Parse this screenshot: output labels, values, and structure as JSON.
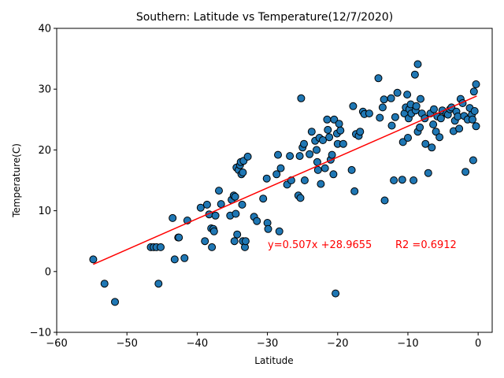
{
  "chart_data": {
    "type": "scatter",
    "title": "Southern: Latitude vs Temperature(12/7/2020)",
    "xlabel": "Latitude",
    "ylabel": "Temperature(C)",
    "xlim": [
      -60,
      2
    ],
    "ylim": [
      -10,
      40
    ],
    "x_ticks": [
      -60,
      -50,
      -40,
      -30,
      -20,
      -10,
      0
    ],
    "y_ticks": [
      -10,
      0,
      10,
      20,
      30,
      40
    ],
    "grid": false,
    "point_color": "#1f77b4",
    "line_color": "#ff0000",
    "regression": {
      "slope": 0.507,
      "intercept": 28.9655,
      "x_range": [
        -54.8,
        -0.2
      ],
      "equation_label": "y=0.507x +28.9655",
      "r2_label": "R2 =0.6912"
    },
    "points": [
      [
        -54.8,
        2.0
      ],
      [
        -53.2,
        -2.0
      ],
      [
        -51.7,
        -5.0
      ],
      [
        -46.6,
        4.0
      ],
      [
        -46.2,
        4.0
      ],
      [
        -45.8,
        4.0
      ],
      [
        -45.5,
        -2.0
      ],
      [
        -45.2,
        4.0
      ],
      [
        -43.5,
        8.8
      ],
      [
        -43.2,
        2.0
      ],
      [
        -42.7,
        5.6
      ],
      [
        -42.6,
        5.6
      ],
      [
        -41.8,
        2.2
      ],
      [
        -41.4,
        8.4
      ],
      [
        -39.5,
        10.5
      ],
      [
        -38.9,
        5.0
      ],
      [
        -38.6,
        11.0
      ],
      [
        -38.3,
        9.4
      ],
      [
        -38.0,
        7.1
      ],
      [
        -37.9,
        4.0
      ],
      [
        -37.7,
        7.0
      ],
      [
        -37.6,
        6.6
      ],
      [
        -37.4,
        9.2
      ],
      [
        -36.9,
        13.3
      ],
      [
        -36.6,
        11.1
      ],
      [
        -35.3,
        9.2
      ],
      [
        -35.1,
        11.8
      ],
      [
        -34.8,
        12.5
      ],
      [
        -34.6,
        12.3
      ],
      [
        -34.7,
        5.0
      ],
      [
        -34.5,
        9.5
      ],
      [
        -34.4,
        17.1
      ],
      [
        -34.3,
        6.1
      ],
      [
        -34.1,
        16.7
      ],
      [
        -33.9,
        17.5
      ],
      [
        -33.8,
        18.0
      ],
      [
        -33.7,
        16.0
      ],
      [
        -33.6,
        11.0
      ],
      [
        -33.5,
        16.3
      ],
      [
        -33.5,
        5.0
      ],
      [
        -33.4,
        18.2
      ],
      [
        -33.2,
        4.0
      ],
      [
        -33.1,
        5.0
      ],
      [
        -32.8,
        18.9
      ],
      [
        -31.9,
        9.0
      ],
      [
        -31.5,
        8.3
      ],
      [
        -30.6,
        12.0
      ],
      [
        -30.1,
        15.3
      ],
      [
        -30.0,
        8.0
      ],
      [
        -29.9,
        7.0
      ],
      [
        -28.7,
        16.0
      ],
      [
        -28.5,
        19.2
      ],
      [
        -28.3,
        6.6
      ],
      [
        -28.1,
        17.0
      ],
      [
        -27.2,
        14.3
      ],
      [
        -26.8,
        19.0
      ],
      [
        -26.6,
        15.0
      ],
      [
        -25.6,
        12.5
      ],
      [
        -25.4,
        19.0
      ],
      [
        -25.3,
        12.1
      ],
      [
        -25.2,
        28.5
      ],
      [
        -25.0,
        20.4
      ],
      [
        -24.8,
        21.0
      ],
      [
        -24.7,
        15.0
      ],
      [
        -24.0,
        19.3
      ],
      [
        -23.7,
        23.0
      ],
      [
        -23.2,
        21.5
      ],
      [
        -23.0,
        20.0
      ],
      [
        -22.9,
        18.0
      ],
      [
        -22.8,
        16.7
      ],
      [
        -22.6,
        22.0
      ],
      [
        -22.4,
        14.4
      ],
      [
        -22.1,
        21.6
      ],
      [
        -21.8,
        17.0
      ],
      [
        -21.5,
        25.0
      ],
      [
        -21.4,
        23.3
      ],
      [
        -21.2,
        22.1
      ],
      [
        -21.0,
        18.4
      ],
      [
        -20.8,
        19.2
      ],
      [
        -20.6,
        16.0
      ],
      [
        -20.5,
        25.0
      ],
      [
        -20.3,
        -3.6
      ],
      [
        -20.1,
        22.7
      ],
      [
        -20.0,
        21.0
      ],
      [
        -19.8,
        24.3
      ],
      [
        -19.6,
        23.2
      ],
      [
        -19.2,
        21.0
      ],
      [
        -18.0,
        16.7
      ],
      [
        -17.8,
        27.2
      ],
      [
        -17.6,
        13.2
      ],
      [
        -17.4,
        22.6
      ],
      [
        -17.0,
        22.3
      ],
      [
        -16.8,
        23.0
      ],
      [
        -16.4,
        26.3
      ],
      [
        -16.2,
        25.9
      ],
      [
        -15.5,
        26.0
      ],
      [
        -14.2,
        31.8
      ],
      [
        -14.0,
        25.3
      ],
      [
        -13.6,
        27.0
      ],
      [
        -13.4,
        28.3
      ],
      [
        -13.3,
        11.7
      ],
      [
        -12.4,
        28.5
      ],
      [
        -12.3,
        24.0
      ],
      [
        -12.0,
        15.0
      ],
      [
        -11.8,
        25.4
      ],
      [
        -11.5,
        29.4
      ],
      [
        -10.8,
        15.1
      ],
      [
        -10.7,
        21.3
      ],
      [
        -10.5,
        26.0
      ],
      [
        -10.3,
        27.0
      ],
      [
        -10.1,
        29.1
      ],
      [
        -10.0,
        22.0
      ],
      [
        -9.9,
        25.2
      ],
      [
        -9.8,
        26.7
      ],
      [
        -9.6,
        27.5
      ],
      [
        -9.5,
        26.0
      ],
      [
        -9.2,
        15.0
      ],
      [
        -9.0,
        32.4
      ],
      [
        -8.9,
        26.5
      ],
      [
        -8.8,
        27.2
      ],
      [
        -8.6,
        23.0
      ],
      [
        -8.6,
        34.1
      ],
      [
        -8.3,
        23.7
      ],
      [
        -8.2,
        28.4
      ],
      [
        -8.0,
        26.0
      ],
      [
        -7.6,
        25.2
      ],
      [
        -7.5,
        21.0
      ],
      [
        -7.1,
        16.2
      ],
      [
        -6.8,
        26.0
      ],
      [
        -6.6,
        20.4
      ],
      [
        -6.4,
        24.2
      ],
      [
        -6.3,
        26.7
      ],
      [
        -6.0,
        23.0
      ],
      [
        -5.8,
        25.5
      ],
      [
        -5.5,
        22.1
      ],
      [
        -5.3,
        25.2
      ],
      [
        -5.1,
        26.5
      ],
      [
        -4.5,
        26.0
      ],
      [
        -4.3,
        25.8
      ],
      [
        -4.0,
        26.7
      ],
      [
        -3.8,
        27.0
      ],
      [
        -3.5,
        23.1
      ],
      [
        -3.3,
        24.8
      ],
      [
        -3.1,
        26.3
      ],
      [
        -2.9,
        25.5
      ],
      [
        -2.7,
        23.5
      ],
      [
        -2.5,
        28.4
      ],
      [
        -2.2,
        27.7
      ],
      [
        -2.0,
        25.6
      ],
      [
        -1.8,
        16.4
      ],
      [
        -1.5,
        25.0
      ],
      [
        -1.2,
        26.9
      ],
      [
        -0.9,
        25.8
      ],
      [
        -0.8,
        25.0
      ],
      [
        -0.7,
        18.3
      ],
      [
        -0.6,
        29.6
      ],
      [
        -0.5,
        26.4
      ],
      [
        -0.3,
        30.8
      ],
      [
        -0.3,
        23.9
      ]
    ]
  }
}
